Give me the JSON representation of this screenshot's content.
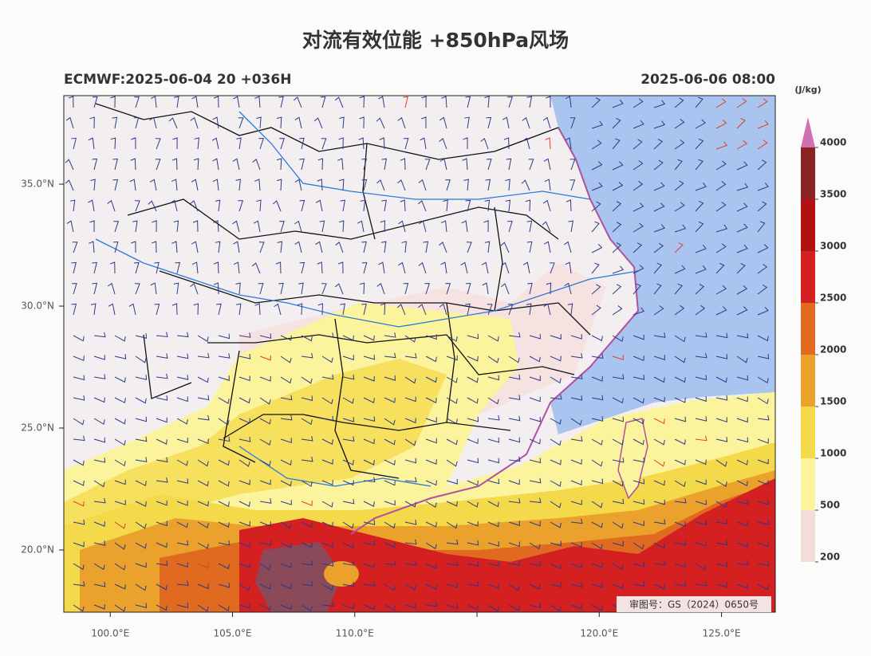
{
  "map": {
    "title": "对流有效位能 +850hPa风场",
    "left_label": "ECMWF:2025-06-04 20 +036H",
    "right_label": "2025-06-06 08:00",
    "stamp": "审图号：GS（2024）0650号",
    "xlim": [
      98.1,
      127.2
    ],
    "ylim": [
      17.45,
      38.63
    ],
    "xticks": [
      {
        "value": 100,
        "label": "100.0°E"
      },
      {
        "value": 105,
        "label": "105.0°E"
      },
      {
        "value": 110,
        "label": "110.0°E"
      },
      {
        "value": 115,
        "label": null
      },
      {
        "value": 120,
        "label": "120.0°E"
      },
      {
        "value": 125,
        "label": "125.0°E"
      }
    ],
    "yticks": [
      {
        "value": 20,
        "label": "20.0°N"
      },
      {
        "value": 25,
        "label": "25.0°N"
      },
      {
        "value": 30,
        "label": "30.0°N"
      },
      {
        "value": 35,
        "label": "35.0°N"
      }
    ],
    "colorbar": {
      "unit": "(J/kg)",
      "levels": [
        200,
        500,
        1000,
        1500,
        2000,
        2500,
        3000,
        3500,
        4000
      ],
      "colors": [
        "#f4dcd8",
        "#fbf49c",
        "#f4d94a",
        "#eba22c",
        "#e06a20",
        "#d42020",
        "#b01212",
        "#8a2424",
        "#d070b0"
      ]
    }
  }
}
